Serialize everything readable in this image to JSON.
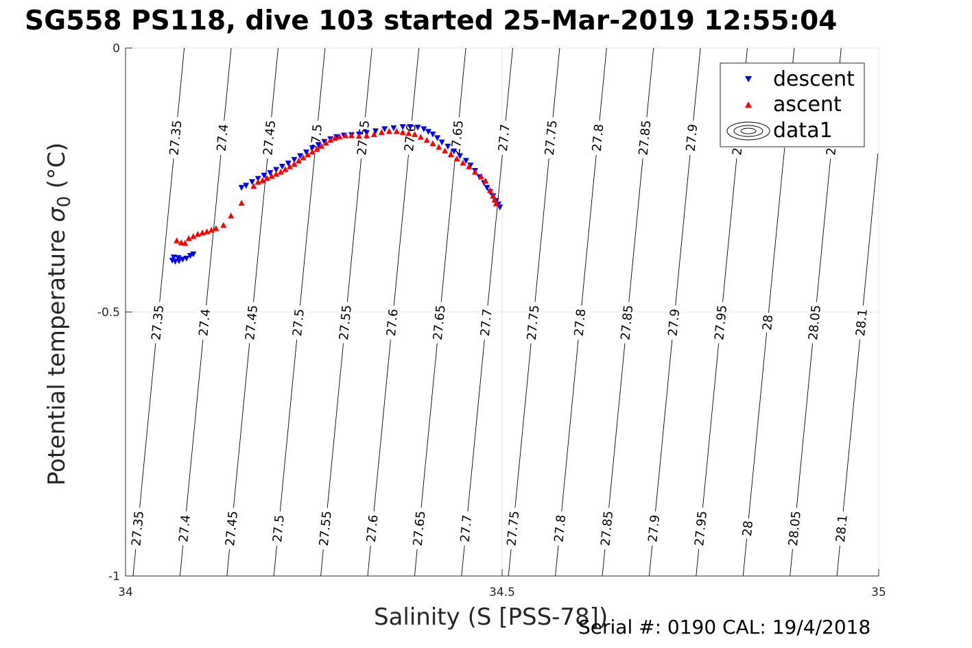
{
  "title": "SG558 PS118, dive 103 started 25-Mar-2019 12:55:04",
  "footer": "Serial #: 0190  CAL: 19/4/2018",
  "chart_data": {
    "type": "scatter",
    "title": "SG558 PS118, dive 103 started 25-Mar-2019 12:55:04",
    "xlabel": "Salinity (S [PSS-78])",
    "ylabel_main": "Potential temperature ",
    "ylabel_sigma": "σ",
    "ylabel_sub": "0",
    "ylabel_unit": " (°C)",
    "xlim": [
      34,
      35
    ],
    "ylim": [
      -1,
      0
    ],
    "xticks": [
      34,
      34.5,
      35
    ],
    "xtick_labels": [
      "34",
      "34.5",
      "35"
    ],
    "yticks": [
      0,
      -0.5,
      -1
    ],
    "ytick_labels": [
      "0",
      "-0.5",
      "-1"
    ],
    "grid": true,
    "legend_position": "top-right",
    "legend": [
      {
        "label": "descent",
        "marker": "triangle-down",
        "color": "#0000ff"
      },
      {
        "label": "ascent",
        "marker": "triangle-up",
        "color": "#ff0000"
      },
      {
        "label": "data1",
        "marker": "contour",
        "color": "#000000"
      }
    ],
    "contours": {
      "levels": [
        27.35,
        27.4,
        27.45,
        27.5,
        27.55,
        27.6,
        27.65,
        27.7,
        27.75,
        27.8,
        27.85,
        27.9,
        27.95,
        28,
        28.05,
        28.1
      ],
      "labels": [
        "27.35",
        "27.4",
        "27.45",
        "27.5",
        "27.55",
        "27.6",
        "27.65",
        "27.7",
        "27.75",
        "27.8",
        "27.85",
        "27.9",
        "27.95",
        "28",
        "28.05",
        "28.1"
      ],
      "label_rows_y": [
        -0.17,
        -0.52,
        -0.91
      ]
    },
    "series": [
      {
        "name": "descent",
        "marker": "triangle-down",
        "color": "#0000ff",
        "points": [
          [
            34.062,
            -0.402
          ],
          [
            34.066,
            -0.404
          ],
          [
            34.071,
            -0.403
          ],
          [
            34.076,
            -0.4
          ],
          [
            34.081,
            -0.398
          ],
          [
            34.086,
            -0.393
          ],
          [
            34.09,
            -0.39
          ],
          [
            34.064,
            -0.396
          ],
          [
            34.07,
            -0.397
          ],
          [
            34.154,
            -0.264
          ],
          [
            34.16,
            -0.26
          ],
          [
            34.168,
            -0.253
          ],
          [
            34.176,
            -0.247
          ],
          [
            34.184,
            -0.241
          ],
          [
            34.192,
            -0.236
          ],
          [
            34.2,
            -0.23
          ],
          [
            34.208,
            -0.224
          ],
          [
            34.216,
            -0.218
          ],
          [
            34.224,
            -0.211
          ],
          [
            34.232,
            -0.204
          ],
          [
            34.24,
            -0.197
          ],
          [
            34.248,
            -0.189
          ],
          [
            34.256,
            -0.183
          ],
          [
            34.264,
            -0.177
          ],
          [
            34.272,
            -0.172
          ],
          [
            34.28,
            -0.168
          ],
          [
            34.29,
            -0.165
          ],
          [
            34.3,
            -0.164
          ],
          [
            34.31,
            -0.163
          ],
          [
            34.32,
            -0.16
          ],
          [
            34.332,
            -0.157
          ],
          [
            34.344,
            -0.153
          ],
          [
            34.356,
            -0.151
          ],
          [
            34.368,
            -0.149
          ],
          [
            34.378,
            -0.149
          ],
          [
            34.388,
            -0.15
          ],
          [
            34.396,
            -0.153
          ],
          [
            34.402,
            -0.158
          ],
          [
            34.408,
            -0.163
          ],
          [
            34.414,
            -0.17
          ],
          [
            34.42,
            -0.178
          ],
          [
            34.428,
            -0.186
          ],
          [
            34.436,
            -0.195
          ],
          [
            34.444,
            -0.204
          ],
          [
            34.452,
            -0.213
          ],
          [
            34.458,
            -0.222
          ],
          [
            34.464,
            -0.232
          ],
          [
            34.47,
            -0.244
          ],
          [
            34.476,
            -0.255
          ],
          [
            34.48,
            -0.264
          ],
          [
            34.484,
            -0.272
          ],
          [
            34.488,
            -0.28
          ],
          [
            34.492,
            -0.289
          ],
          [
            34.495,
            -0.296
          ],
          [
            34.497,
            -0.301
          ]
        ]
      },
      {
        "name": "ascent",
        "marker": "triangle-up",
        "color": "#ff0000",
        "points": [
          [
            34.068,
            -0.365
          ],
          [
            34.074,
            -0.369
          ],
          [
            34.079,
            -0.37
          ],
          [
            34.084,
            -0.361
          ],
          [
            34.09,
            -0.357
          ],
          [
            34.096,
            -0.353
          ],
          [
            34.102,
            -0.35
          ],
          [
            34.108,
            -0.348
          ],
          [
            34.114,
            -0.345
          ],
          [
            34.12,
            -0.342
          ],
          [
            34.13,
            -0.336
          ],
          [
            34.14,
            -0.318
          ],
          [
            34.154,
            -0.294
          ],
          [
            34.17,
            -0.262
          ],
          [
            34.176,
            -0.254
          ],
          [
            34.182,
            -0.251
          ],
          [
            34.188,
            -0.247
          ],
          [
            34.194,
            -0.243
          ],
          [
            34.2,
            -0.239
          ],
          [
            34.206,
            -0.235
          ],
          [
            34.212,
            -0.23
          ],
          [
            34.218,
            -0.225
          ],
          [
            34.224,
            -0.22
          ],
          [
            34.23,
            -0.214
          ],
          [
            34.236,
            -0.208
          ],
          [
            34.242,
            -0.202
          ],
          [
            34.248,
            -0.197
          ],
          [
            34.254,
            -0.192
          ],
          [
            34.26,
            -0.186
          ],
          [
            34.266,
            -0.18
          ],
          [
            34.272,
            -0.175
          ],
          [
            34.278,
            -0.171
          ],
          [
            34.284,
            -0.168
          ],
          [
            34.292,
            -0.166
          ],
          [
            34.3,
            -0.166
          ],
          [
            34.31,
            -0.167
          ],
          [
            34.32,
            -0.166
          ],
          [
            34.33,
            -0.164
          ],
          [
            34.34,
            -0.16
          ],
          [
            34.35,
            -0.158
          ],
          [
            34.36,
            -0.158
          ],
          [
            34.368,
            -0.16
          ],
          [
            34.376,
            -0.162
          ],
          [
            34.384,
            -0.164
          ],
          [
            34.392,
            -0.169
          ],
          [
            34.4,
            -0.175
          ],
          [
            34.408,
            -0.181
          ],
          [
            34.416,
            -0.188
          ],
          [
            34.424,
            -0.195
          ],
          [
            34.432,
            -0.202
          ],
          [
            34.44,
            -0.21
          ],
          [
            34.448,
            -0.218
          ],
          [
            34.456,
            -0.225
          ],
          [
            34.464,
            -0.235
          ],
          [
            34.472,
            -0.244
          ],
          [
            34.478,
            -0.252
          ],
          [
            34.484,
            -0.27
          ],
          [
            34.488,
            -0.28
          ],
          [
            34.49,
            -0.288
          ],
          [
            34.492,
            -0.295
          ]
        ]
      }
    ]
  }
}
